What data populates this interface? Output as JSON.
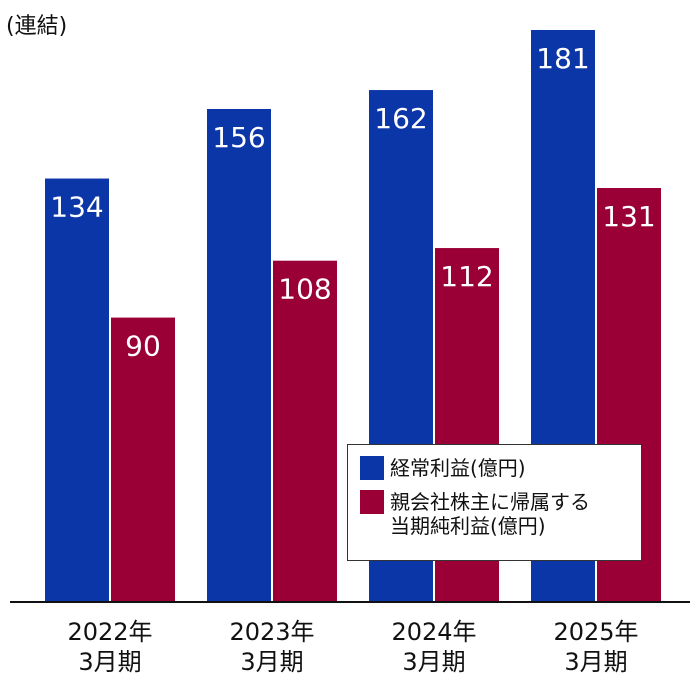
{
  "note": "(連結)",
  "colors": {
    "ordinary_profit": "#0b36a8",
    "net_income": "#9a0036"
  },
  "chart_data": {
    "type": "bar",
    "categories": [
      "2022年\n3月期",
      "2023年\n3月期",
      "2024年\n3月期",
      "2025年\n3月期"
    ],
    "series": [
      {
        "name": "経常利益(億円)",
        "values": [
          134,
          156,
          162,
          181
        ]
      },
      {
        "name": "親会社株主に帰属する\n当期純利益(億円)",
        "values": [
          90,
          108,
          112,
          131
        ]
      }
    ],
    "ylim": [
      0,
      181
    ],
    "legend_position": "bottom-right",
    "grid": false
  }
}
